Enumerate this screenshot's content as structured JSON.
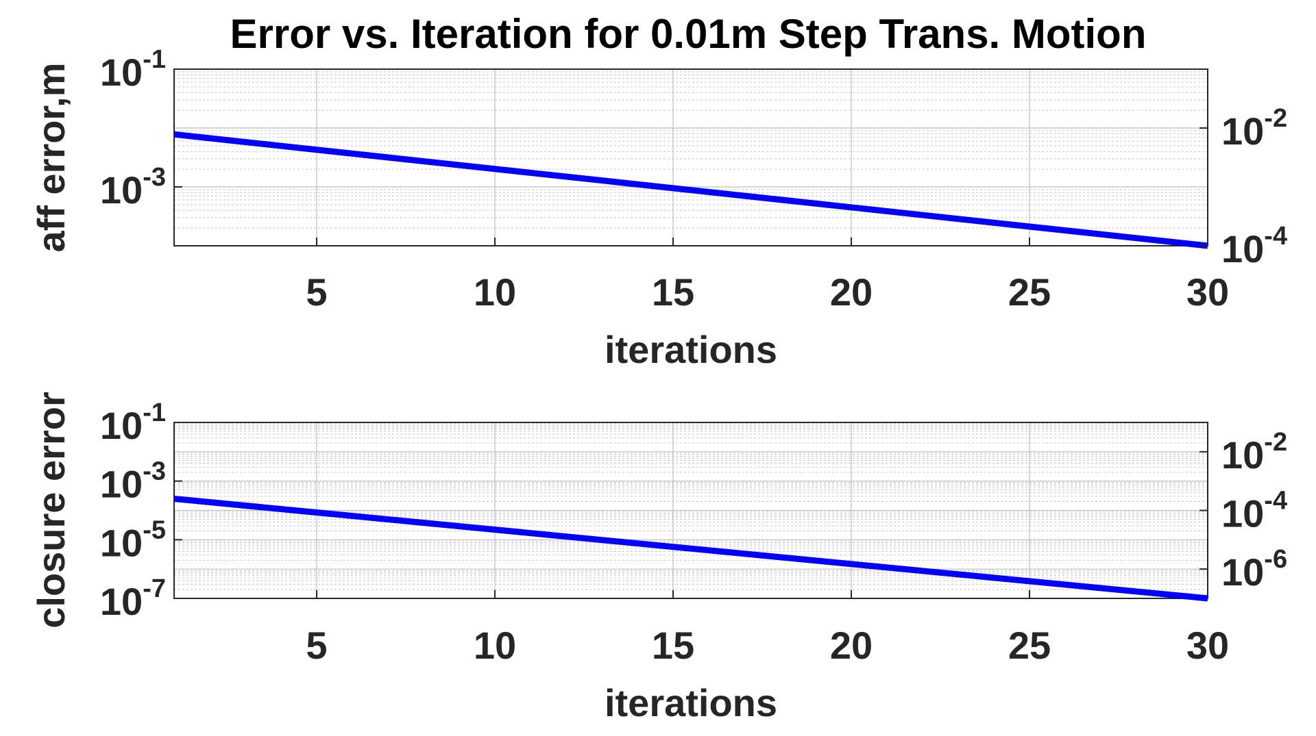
{
  "figure": {
    "title": "Error vs. Iteration for 0.01m Step Trans. Motion"
  },
  "colors": {
    "series": "#0000ff",
    "axes": "#262626",
    "grid": "#bdbdbd"
  },
  "chart_data": [
    {
      "type": "line",
      "title": "Error vs. Iteration for 0.01m Step Trans. Motion",
      "xlabel": "iterations",
      "ylabel": "aff error,m",
      "xlim": [
        1,
        30
      ],
      "ylim": [
        0.0001,
        0.1
      ],
      "yscale": "log",
      "grid": true,
      "x_ticks": [
        "5",
        "10",
        "15",
        "20",
        "25",
        "30"
      ],
      "y_ticks_left": [
        {
          "base": "10",
          "exp": "-1",
          "value": 0.1
        },
        {
          "base": "10",
          "exp": "-3",
          "value": 0.001
        }
      ],
      "y_ticks_right": [
        {
          "base": "10",
          "exp": "-2",
          "value": 0.01
        },
        {
          "base": "10",
          "exp": "-4",
          "value": 0.0001
        }
      ],
      "series": [
        {
          "x": [
            1,
            30
          ],
          "y": [
            0.0078,
            0.0001
          ]
        }
      ]
    },
    {
      "type": "line",
      "xlabel": "iterations",
      "ylabel": "closure error",
      "xlim": [
        1,
        30
      ],
      "ylim": [
        1e-07,
        0.1
      ],
      "yscale": "log",
      "grid": true,
      "x_ticks": [
        "5",
        "10",
        "15",
        "20",
        "25",
        "30"
      ],
      "y_ticks_left": [
        {
          "base": "10",
          "exp": "-1",
          "value": 0.1
        },
        {
          "base": "10",
          "exp": "-3",
          "value": 0.001
        },
        {
          "base": "10",
          "exp": "-5",
          "value": 1e-05
        },
        {
          "base": "10",
          "exp": "-7",
          "value": 1e-07
        }
      ],
      "y_ticks_right": [
        {
          "base": "10",
          "exp": "-2",
          "value": 0.01
        },
        {
          "base": "10",
          "exp": "-4",
          "value": 0.0001
        },
        {
          "base": "10",
          "exp": "-6",
          "value": 1e-06
        }
      ],
      "series": [
        {
          "x": [
            1,
            30
          ],
          "y": [
            0.00025,
            1e-07
          ]
        }
      ]
    }
  ]
}
